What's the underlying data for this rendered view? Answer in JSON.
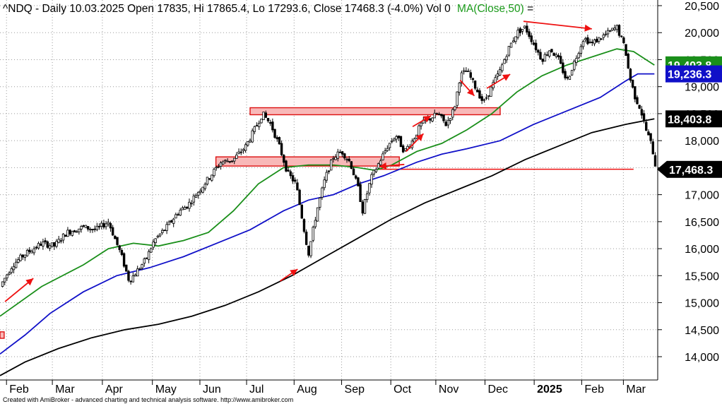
{
  "header": {
    "symbol": "^NDQ",
    "info": "^NDQ - Daily 10.03.2025 Open 17835, Hi 17865.4, Lo 17293.6, Close 17468.3 (-4.0%) Vol 0",
    "ma_label": "MA(Close,50)",
    "trailing": " ="
  },
  "footer": "Created with AmiBroker - advanced charting and technical analysis software. http://www.amibroker.com",
  "colors": {
    "ma50": "#1a8f1a",
    "ma100": "#1010c8",
    "ma200": "#000000",
    "arrow": "#ee1111",
    "zone_fill": "#f8b8b8",
    "zone_stroke": "#dd1111",
    "grid": "#9a9a9a"
  },
  "chart_data": {
    "type": "candlestick",
    "y_ticks": [
      "20,500",
      "20,000",
      "19,500",
      "19,000",
      "18,500",
      "18,000",
      "17,500",
      "17,000",
      "16,500",
      "16,000",
      "15,500",
      "15,000",
      "14,500",
      "14,000"
    ],
    "y_values": [
      20500,
      20000,
      19500,
      19000,
      18500,
      18000,
      17500,
      17000,
      16500,
      16000,
      15500,
      15000,
      14500,
      14000
    ],
    "x_months": [
      {
        "label": "Feb",
        "pos": 0.04
      },
      {
        "label": "Mar",
        "pos": 0.095
      },
      {
        "label": "Apr",
        "pos": 0.155
      },
      {
        "label": "May",
        "pos": 0.215
      },
      {
        "label": "Jun",
        "pos": 0.272
      },
      {
        "label": "Jul",
        "pos": 0.328
      },
      {
        "label": "Aug",
        "pos": 0.385
      },
      {
        "label": "Sep",
        "pos": 0.442
      },
      {
        "label": "Oct",
        "pos": 0.501
      },
      {
        "label": "Nov",
        "pos": 0.555
      },
      {
        "label": "Dec",
        "pos": 0.614
      },
      {
        "label": "2025",
        "pos": 0.673,
        "bold": true
      },
      {
        "label": "Feb",
        "pos": 0.73
      },
      {
        "label": "Mar",
        "pos": 0.78
      }
    ],
    "price_path": [
      [
        0.0,
        15300
      ],
      [
        0.015,
        15700
      ],
      [
        0.03,
        15900
      ],
      [
        0.05,
        16100
      ],
      [
        0.065,
        16050
      ],
      [
        0.08,
        16300
      ],
      [
        0.1,
        16400
      ],
      [
        0.115,
        16350
      ],
      [
        0.13,
        16500
      ],
      [
        0.145,
        15900
      ],
      [
        0.155,
        15400
      ],
      [
        0.165,
        15600
      ],
      [
        0.175,
        15800
      ],
      [
        0.185,
        16150
      ],
      [
        0.2,
        16400
      ],
      [
        0.215,
        16700
      ],
      [
        0.225,
        16800
      ],
      [
        0.24,
        17100
      ],
      [
        0.255,
        17400
      ],
      [
        0.265,
        17600
      ],
      [
        0.28,
        17650
      ],
      [
        0.295,
        17900
      ],
      [
        0.305,
        18200
      ],
      [
        0.315,
        18500
      ],
      [
        0.325,
        18300
      ],
      [
        0.335,
        17900
      ],
      [
        0.345,
        17400
      ],
      [
        0.355,
        17200
      ],
      [
        0.362,
        16600
      ],
      [
        0.37,
        15900
      ],
      [
        0.38,
        16700
      ],
      [
        0.39,
        17300
      ],
      [
        0.4,
        17700
      ],
      [
        0.41,
        17800
      ],
      [
        0.42,
        17600
      ],
      [
        0.43,
        17100
      ],
      [
        0.435,
        16700
      ],
      [
        0.445,
        17300
      ],
      [
        0.455,
        17600
      ],
      [
        0.465,
        17900
      ],
      [
        0.475,
        18100
      ],
      [
        0.485,
        17800
      ],
      [
        0.495,
        18000
      ],
      [
        0.505,
        18300
      ],
      [
        0.515,
        18400
      ],
      [
        0.525,
        18500
      ],
      [
        0.535,
        18300
      ],
      [
        0.545,
        18600
      ],
      [
        0.552,
        19200
      ],
      [
        0.56,
        19300
      ],
      [
        0.57,
        19000
      ],
      [
        0.58,
        18700
      ],
      [
        0.59,
        19000
      ],
      [
        0.6,
        19300
      ],
      [
        0.61,
        19700
      ],
      [
        0.62,
        20000
      ],
      [
        0.63,
        20100
      ],
      [
        0.64,
        19800
      ],
      [
        0.65,
        19500
      ],
      [
        0.66,
        19700
      ],
      [
        0.67,
        19500
      ],
      [
        0.68,
        19100
      ],
      [
        0.69,
        19500
      ],
      [
        0.7,
        19900
      ],
      [
        0.71,
        19800
      ],
      [
        0.72,
        19900
      ],
      [
        0.73,
        20000
      ],
      [
        0.74,
        20100
      ],
      [
        0.75,
        19700
      ],
      [
        0.755,
        19200
      ],
      [
        0.762,
        18800
      ],
      [
        0.768,
        18600
      ],
      [
        0.775,
        18200
      ],
      [
        0.782,
        17900
      ],
      [
        0.787,
        17470
      ]
    ],
    "candles_per_unit": 0.0027,
    "ma50": [
      [
        0.0,
        14750
      ],
      [
        0.05,
        15300
      ],
      [
        0.1,
        15700
      ],
      [
        0.13,
        16000
      ],
      [
        0.16,
        16100
      ],
      [
        0.19,
        16050
      ],
      [
        0.22,
        16150
      ],
      [
        0.25,
        16300
      ],
      [
        0.28,
        16700
      ],
      [
        0.31,
        17200
      ],
      [
        0.34,
        17500
      ],
      [
        0.37,
        17550
      ],
      [
        0.4,
        17550
      ],
      [
        0.43,
        17500
      ],
      [
        0.45,
        17450
      ],
      [
        0.47,
        17550
      ],
      [
        0.5,
        17800
      ],
      [
        0.53,
        17950
      ],
      [
        0.56,
        18200
      ],
      [
        0.59,
        18500
      ],
      [
        0.62,
        18900
      ],
      [
        0.65,
        19200
      ],
      [
        0.68,
        19400
      ],
      [
        0.71,
        19550
      ],
      [
        0.74,
        19700
      ],
      [
        0.76,
        19650
      ],
      [
        0.775,
        19500
      ],
      [
        0.785,
        19400
      ]
    ],
    "ma100": [
      [
        0.0,
        14050
      ],
      [
        0.03,
        14400
      ],
      [
        0.06,
        14800
      ],
      [
        0.1,
        15200
      ],
      [
        0.14,
        15500
      ],
      [
        0.18,
        15650
      ],
      [
        0.22,
        15850
      ],
      [
        0.26,
        16100
      ],
      [
        0.3,
        16350
      ],
      [
        0.34,
        16700
      ],
      [
        0.37,
        16900
      ],
      [
        0.4,
        17000
      ],
      [
        0.43,
        17200
      ],
      [
        0.46,
        17350
      ],
      [
        0.5,
        17600
      ],
      [
        0.53,
        17750
      ],
      [
        0.56,
        17850
      ],
      [
        0.6,
        18000
      ],
      [
        0.64,
        18300
      ],
      [
        0.68,
        18550
      ],
      [
        0.72,
        18800
      ],
      [
        0.75,
        19100
      ],
      [
        0.765,
        19236
      ],
      [
        0.785,
        19236
      ]
    ],
    "ma200": [
      [
        0.0,
        13650
      ],
      [
        0.03,
        13900
      ],
      [
        0.07,
        14150
      ],
      [
        0.11,
        14350
      ],
      [
        0.15,
        14500
      ],
      [
        0.19,
        14600
      ],
      [
        0.23,
        14750
      ],
      [
        0.27,
        14950
      ],
      [
        0.31,
        15200
      ],
      [
        0.35,
        15500
      ],
      [
        0.39,
        15850
      ],
      [
        0.43,
        16200
      ],
      [
        0.47,
        16550
      ],
      [
        0.51,
        16850
      ],
      [
        0.55,
        17100
      ],
      [
        0.59,
        17350
      ],
      [
        0.63,
        17650
      ],
      [
        0.67,
        17900
      ],
      [
        0.71,
        18150
      ],
      [
        0.75,
        18300
      ],
      [
        0.785,
        18404
      ]
    ],
    "zones": [
      {
        "x0": 0.3,
        "x1": 0.6,
        "y0": 18480,
        "y1": 18610
      },
      {
        "x0": 0.259,
        "x1": 0.479,
        "y0": 17530,
        "y1": 17700
      },
      {
        "x0": -0.005,
        "x1": 0.005,
        "y0": 14340,
        "y1": 14460
      }
    ],
    "hline": {
      "x0": 0.455,
      "x1": 0.76,
      "y": 17470
    },
    "arrows": [
      {
        "x1": 0.006,
        "y1": 15020,
        "x2": 0.04,
        "y2": 15450
      },
      {
        "x1": 0.336,
        "y1": 15400,
        "x2": 0.357,
        "y2": 15620
      },
      {
        "x1": 0.487,
        "y1": 17800,
        "x2": 0.508,
        "y2": 18130
      },
      {
        "x1": 0.495,
        "y1": 18260,
        "x2": 0.517,
        "y2": 18460
      },
      {
        "x1": 0.552,
        "y1": 19120,
        "x2": 0.569,
        "y2": 18830
      },
      {
        "x1": 0.584,
        "y1": 18970,
        "x2": 0.612,
        "y2": 19230
      },
      {
        "x1": 0.628,
        "y1": 20210,
        "x2": 0.71,
        "y2": 20070
      },
      {
        "x1": 0.485,
        "y1": 17560,
        "x2": 0.455,
        "y2": 17520
      }
    ],
    "value_labels": [
      {
        "text": "19,403.8",
        "value": 19403.8,
        "bg": "#1a8f1a",
        "fg": "#ffffff"
      },
      {
        "text": "19,236.3",
        "value": 19236.3,
        "bg": "#1010c8",
        "fg": "#ffffff"
      },
      {
        "text": "18,403.8",
        "value": 18403.8,
        "bg": "#000000",
        "fg": "#ffffff"
      },
      {
        "text": "17,468.3",
        "value": 17468.3,
        "bg": "#000000",
        "fg": "#ffffff",
        "pointer": true
      }
    ]
  }
}
